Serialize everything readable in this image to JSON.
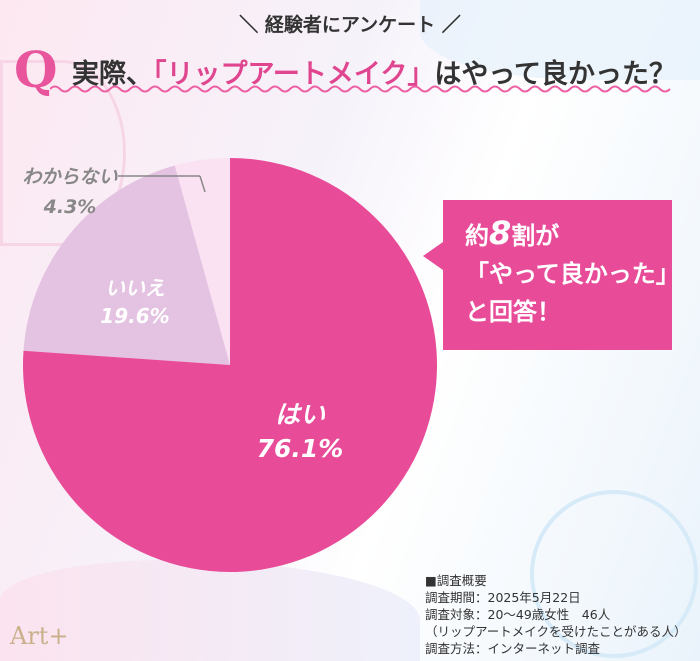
{
  "header": {
    "subtitle": "＼ 経験者にアンケート ／",
    "q_mark": "Q",
    "question_pre": "実際、",
    "question_highlight": "「リップアートメイク」",
    "question_post": "はやって良かった？"
  },
  "chart_data": {
    "type": "pie",
    "title": "実際、「リップアートメイク」はやって良かった？",
    "slices": [
      {
        "label": "はい",
        "value": 76.1,
        "value_label": "76.1%",
        "color": "#e84c99"
      },
      {
        "label": "いいえ",
        "value": 19.6,
        "value_label": "19.6%",
        "color": "#e3c3e1"
      },
      {
        "label": "わからない",
        "value": 4.3,
        "value_label": "4.3%",
        "color": "#fbe2f2"
      }
    ],
    "start": "top",
    "direction": "clockwise"
  },
  "callout": {
    "line1_pre": "約",
    "line1_num": "8",
    "line1_post": "割が",
    "line2": "「やって良かった」",
    "line3": "と回答！"
  },
  "summary": {
    "heading": "■調査概要",
    "period": "調査期間：2025年5月22日",
    "target": "調査対象：20〜49歳女性　46人",
    "target_note": "（リップアートメイクを受けたことがある人）",
    "method": "調査方法：インターネット調査"
  },
  "logo": "Art+"
}
